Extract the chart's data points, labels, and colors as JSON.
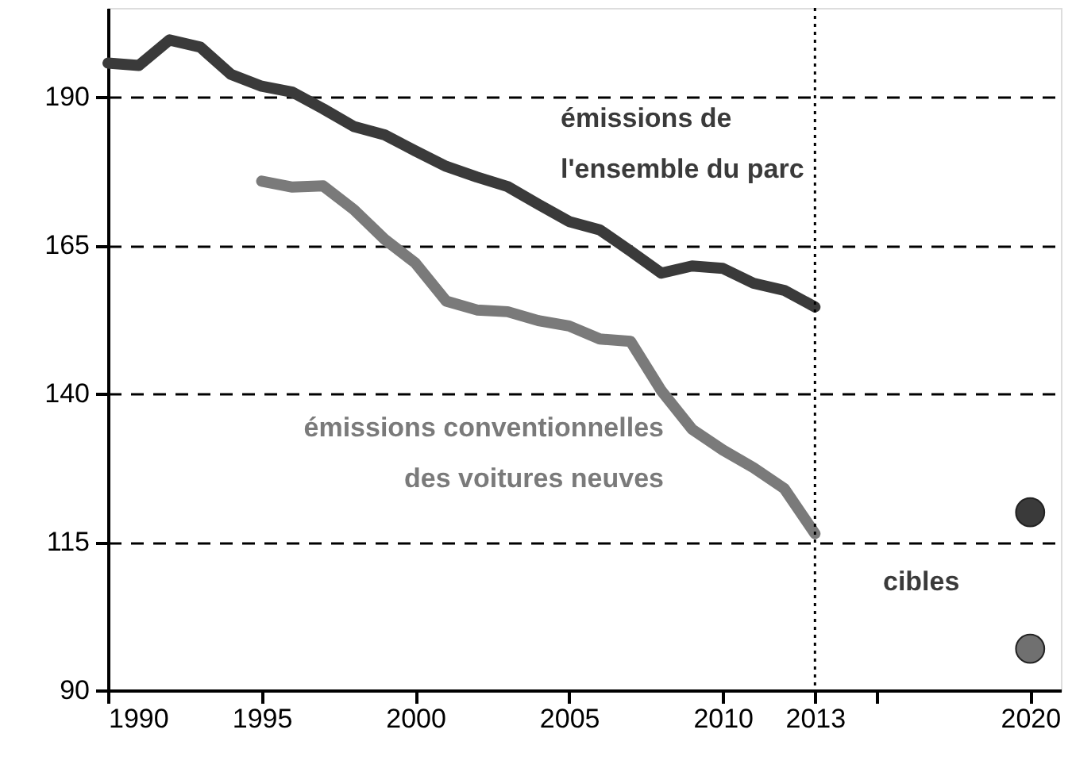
{
  "chart_data": {
    "type": "line",
    "xlim": [
      1990,
      2021
    ],
    "ylim": [
      90,
      205
    ],
    "xticks": [
      1990,
      1995,
      2000,
      2005,
      2010,
      {
        "value": 2013,
        "label": "2013"
      },
      {
        "value": 2015,
        "label": null
      },
      2020
    ],
    "yticks": [
      90,
      115,
      140,
      165,
      190
    ],
    "grid": "y",
    "marker": "none",
    "line_style": "solid",
    "series": [
      {
        "color": "#3a3a3a",
        "x": [
          1990,
          1991,
          1992,
          1993,
          1994,
          1995,
          1996,
          1997,
          1998,
          1999,
          2000,
          2001,
          2002,
          2003,
          2004,
          2005,
          2006,
          2007,
          2008,
          2009,
          2010,
          2011,
          2012,
          2013
        ],
        "values": [
          195.7,
          195.3,
          199.6,
          198.4,
          193.8,
          191.8,
          190.8,
          188,
          185,
          183.6,
          180.9,
          178.3,
          176.5,
          174.9,
          171.9,
          169,
          167.6,
          164,
          160.3,
          161.5,
          161.1,
          158.6,
          157.4,
          154.6
        ]
      },
      {
        "color": "#7a7a7a",
        "x": [
          1995,
          1996,
          1997,
          1998,
          1999,
          2000,
          2001,
          2002,
          2003,
          2004,
          2005,
          2006,
          2007,
          2008,
          2009,
          2010,
          2011,
          2012,
          2013
        ],
        "values": [
          175.8,
          174.8,
          175,
          171,
          166,
          162,
          155.6,
          154.1,
          153.8,
          152.3,
          151.4,
          149.2,
          148.8,
          140.5,
          134,
          130.5,
          127.5,
          124,
          116.4
        ]
      },
      {
        "type": "scatter",
        "marker": "circle",
        "color": "#3a3a3a",
        "x": [
          2020
        ],
        "values": [
          120
        ]
      },
      {
        "type": "scatter",
        "marker": "circle",
        "color": "#707070",
        "x": [
          2020
        ],
        "values": [
          97
        ]
      }
    ],
    "ref_lines": [
      {
        "axis": "x",
        "value": 2013,
        "line_style": "dotted",
        "color": "#000000"
      }
    ],
    "annotations": [
      "émissions de\nl'ensemble du parc",
      "émissions conventionnelles\ndes voitures neuves",
      "cibles"
    ]
  }
}
